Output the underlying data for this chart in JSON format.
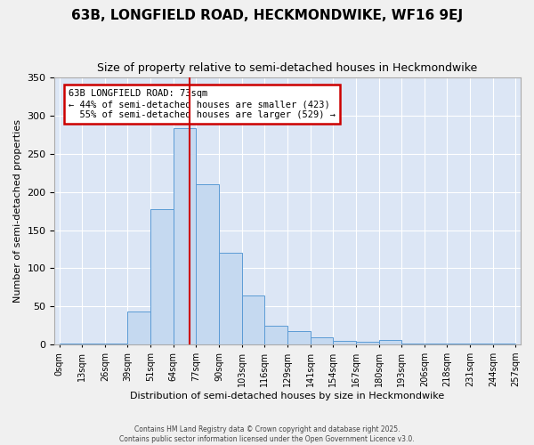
{
  "title": "63B, LONGFIELD ROAD, HECKMONDWIKE, WF16 9EJ",
  "subtitle": "Size of property relative to semi-detached houses in Heckmondwike",
  "xlabel": "Distribution of semi-detached houses by size in Heckmondwike",
  "ylabel": "Number of semi-detached properties",
  "bar_color": "#c5d9f0",
  "bar_edge_color": "#5b9bd5",
  "background_color": "#dce6f5",
  "grid_color": "#ffffff",
  "property_size": 73,
  "property_label": "63B LONGFIELD ROAD: 73sqm",
  "smaller_pct": 44,
  "smaller_count": 423,
  "larger_pct": 55,
  "larger_count": 529,
  "annotation_box_color": "#ffffff",
  "annotation_border_color": "#cc0000",
  "red_line_color": "#cc0000",
  "bin_edges": [
    0,
    13,
    26,
    39,
    51,
    64,
    77,
    90,
    103,
    116,
    129,
    141,
    154,
    167,
    180,
    193,
    206,
    218,
    231,
    244,
    257
  ],
  "bin_labels": [
    "0sqm",
    "13sqm",
    "26sqm",
    "39sqm",
    "51sqm",
    "64sqm",
    "77sqm",
    "90sqm",
    "103sqm",
    "116sqm",
    "129sqm",
    "141sqm",
    "154sqm",
    "167sqm",
    "180sqm",
    "193sqm",
    "206sqm",
    "218sqm",
    "231sqm",
    "244sqm",
    "257sqm"
  ],
  "counts": [
    2,
    2,
    2,
    43,
    178,
    283,
    210,
    120,
    65,
    25,
    18,
    10,
    5,
    4,
    6,
    2,
    2,
    2,
    2,
    2
  ],
  "ylim": [
    0,
    350
  ],
  "yticks": [
    0,
    50,
    100,
    150,
    200,
    250,
    300,
    350
  ],
  "fig_bg_color": "#f0f0f0",
  "footer_line1": "Contains HM Land Registry data © Crown copyright and database right 2025.",
  "footer_line2": "Contains public sector information licensed under the Open Government Licence v3.0."
}
